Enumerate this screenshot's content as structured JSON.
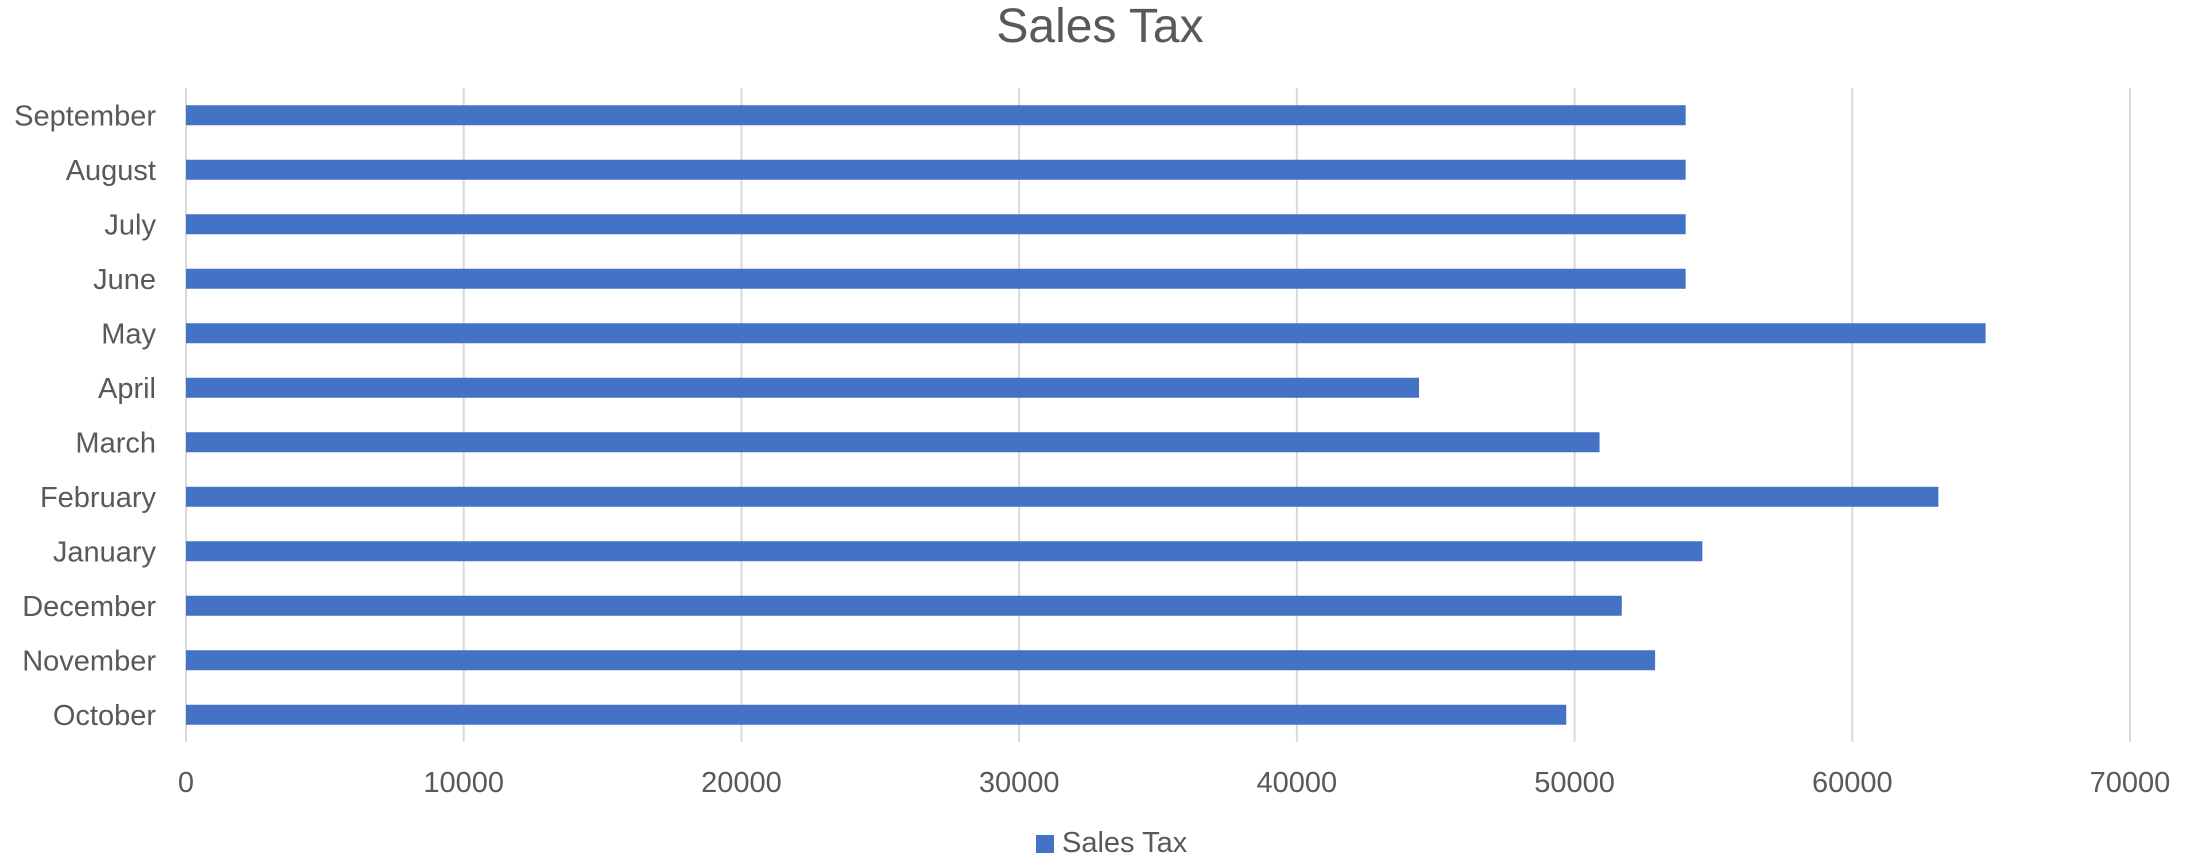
{
  "chart_data": {
    "type": "bar",
    "orientation": "horizontal",
    "title": "Sales Tax",
    "xlabel": "",
    "ylabel": "",
    "categories": [
      "October",
      "November",
      "December",
      "January",
      "February",
      "March",
      "April",
      "May",
      "June",
      "July",
      "August",
      "September"
    ],
    "series": [
      {
        "name": "Sales Tax",
        "values": [
          49700,
          52900,
          51700,
          54600,
          63100,
          50900,
          44400,
          64800,
          54000,
          54000,
          54000,
          54000
        ]
      }
    ],
    "xlim": [
      0,
      70000
    ],
    "xticks": [
      "0",
      "10000",
      "20000",
      "30000",
      "40000",
      "50000",
      "60000",
      "70000"
    ],
    "grid": true,
    "legend": "bottom",
    "colors": {
      "bar": "#4472c4",
      "text": "#595959",
      "grid": "#d9d9d9"
    }
  }
}
